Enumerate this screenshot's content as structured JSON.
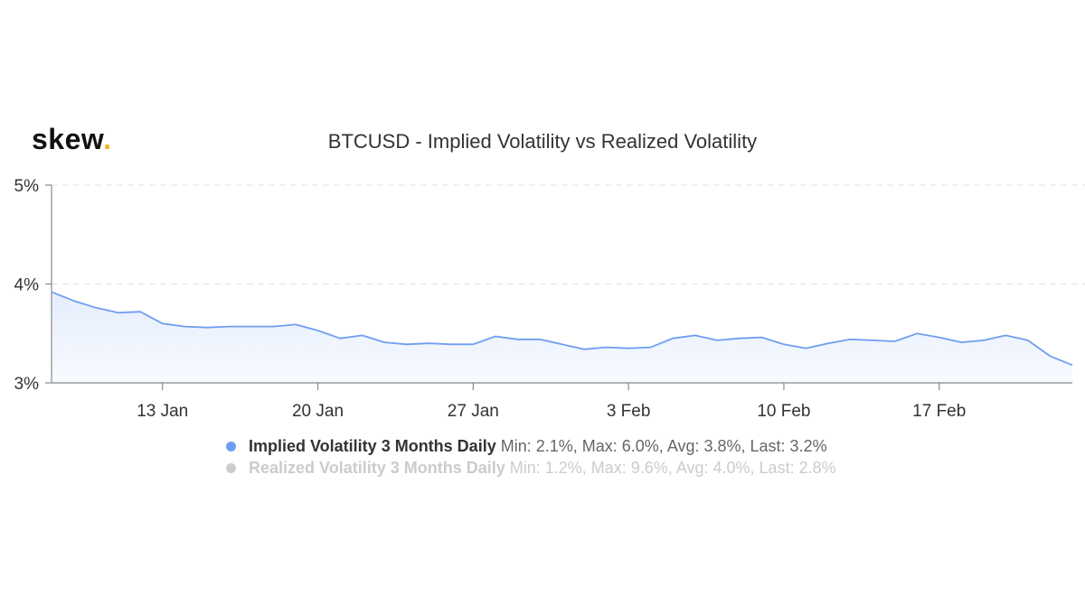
{
  "logo": {
    "text": "skew",
    "dot": ".",
    "accent_color": "#f2b01e"
  },
  "chart_data": {
    "type": "area",
    "title": "BTCUSD - Implied Volatility vs Realized Volatility",
    "xlabel": "",
    "ylabel": "",
    "x_ticks": [
      "13 Jan",
      "20 Jan",
      "27 Jan",
      "3 Feb",
      "10 Feb",
      "17 Feb"
    ],
    "y_ticks": [
      "3%",
      "4%",
      "5%"
    ],
    "ylim": [
      3,
      5
    ],
    "x_range": [
      "2020-01-08",
      "2020-02-23"
    ],
    "grid": true,
    "legend_position": "bottom",
    "series": [
      {
        "name": "Implied Volatility 3 Months Daily",
        "stats": "Min: 2.1%, Max: 6.0%, Avg: 3.8%, Last: 3.2%",
        "color": "#6f9ef0",
        "visible": true,
        "x": [
          "2020-01-08",
          "2020-01-09",
          "2020-01-10",
          "2020-01-11",
          "2020-01-12",
          "2020-01-13",
          "2020-01-14",
          "2020-01-15",
          "2020-01-16",
          "2020-01-17",
          "2020-01-18",
          "2020-01-19",
          "2020-01-20",
          "2020-01-21",
          "2020-01-22",
          "2020-01-23",
          "2020-01-24",
          "2020-01-25",
          "2020-01-26",
          "2020-01-27",
          "2020-01-28",
          "2020-01-29",
          "2020-01-30",
          "2020-01-31",
          "2020-02-01",
          "2020-02-02",
          "2020-02-03",
          "2020-02-04",
          "2020-02-05",
          "2020-02-06",
          "2020-02-07",
          "2020-02-08",
          "2020-02-09",
          "2020-02-10",
          "2020-02-11",
          "2020-02-12",
          "2020-02-13",
          "2020-02-14",
          "2020-02-15",
          "2020-02-16",
          "2020-02-17",
          "2020-02-18",
          "2020-02-19",
          "2020-02-20",
          "2020-02-21",
          "2020-02-22"
        ],
        "values": [
          3.92,
          3.83,
          3.76,
          3.71,
          3.72,
          3.6,
          3.57,
          3.56,
          3.57,
          3.57,
          3.57,
          3.59,
          3.53,
          3.45,
          3.48,
          3.41,
          3.39,
          3.4,
          3.39,
          3.39,
          3.47,
          3.44,
          3.44,
          3.39,
          3.34,
          3.36,
          3.35,
          3.36,
          3.45,
          3.48,
          3.43,
          3.45,
          3.46,
          3.39,
          3.35,
          3.4,
          3.44,
          3.43,
          3.42,
          3.5,
          3.46,
          3.41,
          3.43,
          3.48,
          3.43,
          3.27
        ]
      },
      {
        "name": "Realized Volatility 3 Months Daily",
        "stats": "Min: 1.2%, Max: 9.6%, Avg: 4.0%, Last: 2.8%",
        "color": "#cccccc",
        "visible": false
      }
    ],
    "last_value": 3.18
  }
}
